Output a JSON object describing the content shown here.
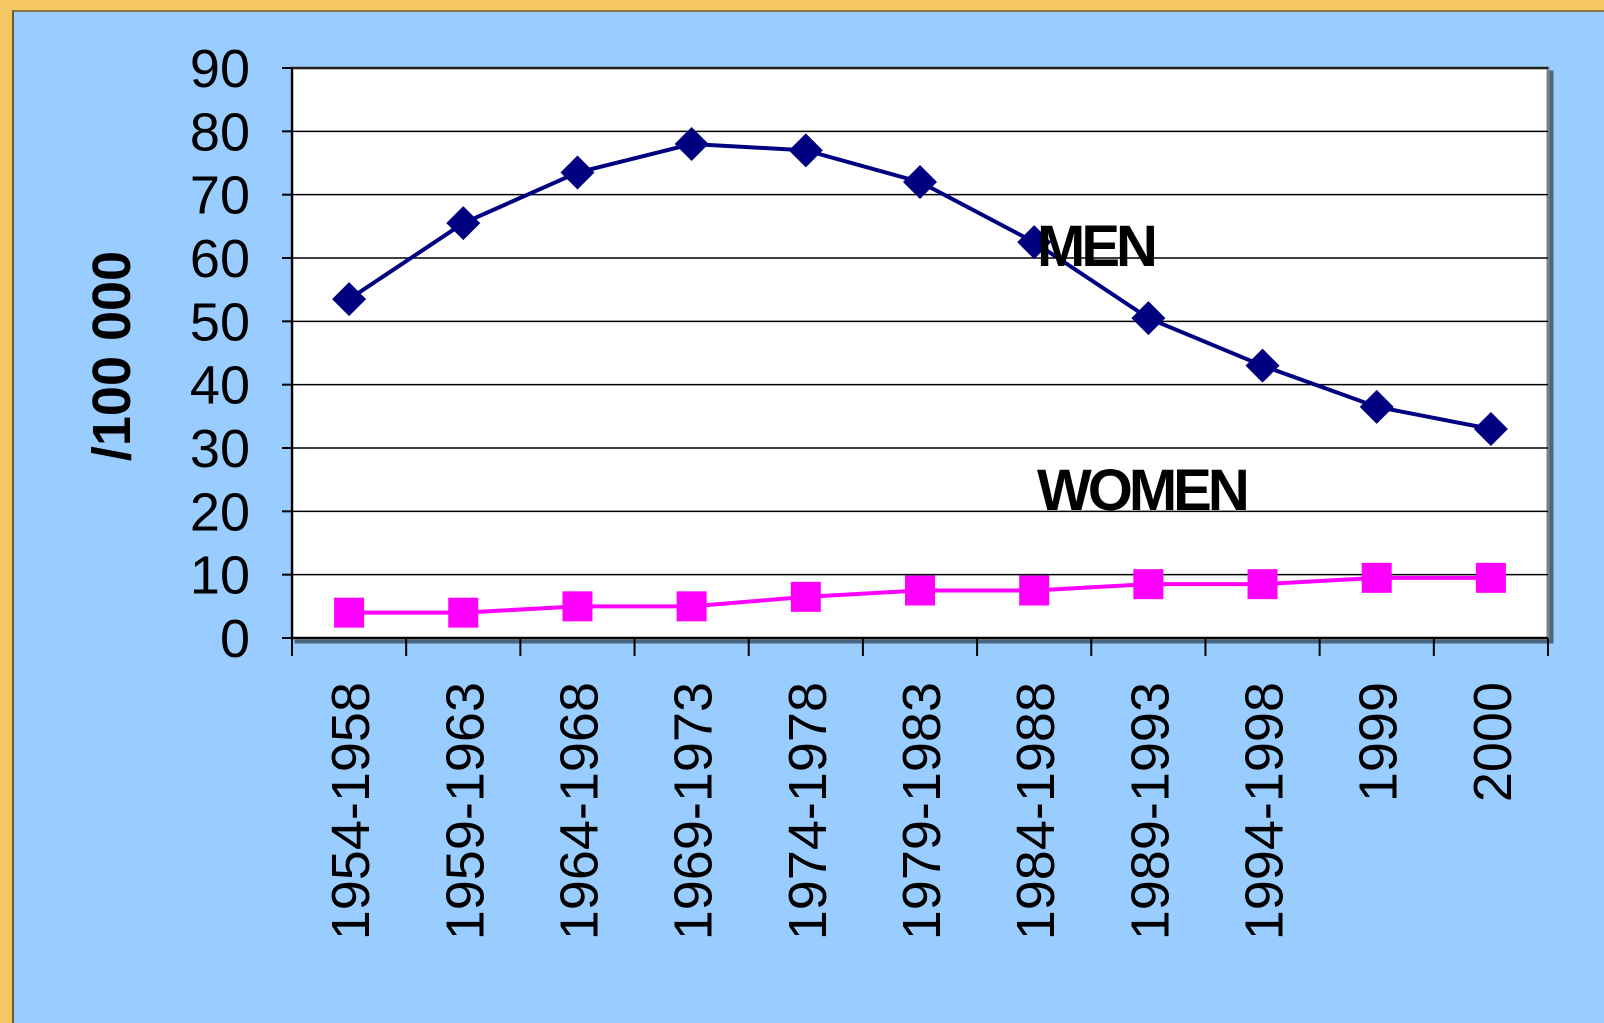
{
  "chart_data": {
    "type": "line",
    "categories": [
      "1954-1958",
      "1959-1963",
      "1964-1968",
      "1969-1973",
      "1974-1978",
      "1979-1983",
      "1984-1988",
      "1989-1993",
      "1994-1998",
      "1999",
      "2000"
    ],
    "series": [
      {
        "name": "MEN",
        "values": [
          53.5,
          65.5,
          73.5,
          78,
          77,
          72,
          62.5,
          50.5,
          43,
          36.5,
          33
        ],
        "color": "#000080",
        "marker": "diamond"
      },
      {
        "name": "WOMEN",
        "values": [
          4,
          4,
          5,
          5,
          6.5,
          7.5,
          7.5,
          8.5,
          8.5,
          9.5,
          9.5
        ],
        "color": "#ff00ff",
        "marker": "square"
      }
    ],
    "yticks": [
      "0",
      "10",
      "20",
      "30",
      "40",
      "50",
      "60",
      "70",
      "80",
      "90"
    ],
    "ylim": [
      0,
      90
    ],
    "ylabel": "/100 000",
    "xlabel": "",
    "title": "",
    "grid": true,
    "legend": "inline labels"
  },
  "colors": {
    "frame": "#f5c764",
    "panel_background": "#99ccff",
    "plot_background": "#ffffff"
  }
}
